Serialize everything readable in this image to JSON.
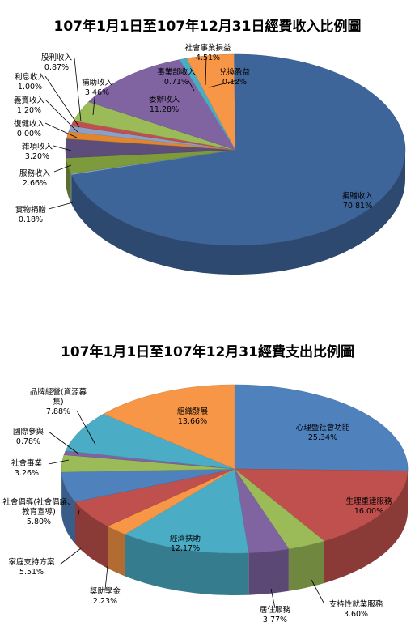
{
  "chart_data": [
    {
      "type": "pie",
      "title": "107年1月1日至107年12月31日經費收入比例圖",
      "style": "3d",
      "slices": [
        {
          "label": "捐贈收入",
          "value": 70.81,
          "display": "70.81%",
          "color": "#3e659a"
        },
        {
          "label": "實物捐贈",
          "value": 0.18,
          "display": "0.18%",
          "color": "#8aa8cf"
        },
        {
          "label": "服務收入",
          "value": 2.66,
          "display": "2.66%",
          "color": "#7d9a3c"
        },
        {
          "label": "雜項收入",
          "value": 3.2,
          "display": "3.20%",
          "color": "#5d4d7a"
        },
        {
          "label": "復健收入",
          "value": 0.0,
          "display": "0.00%",
          "color": "#3c8fa8"
        },
        {
          "label": "義賣收入",
          "value": 1.2,
          "display": "1.20%",
          "color": "#e0862d"
        },
        {
          "label": "利息收入",
          "value": 1.0,
          "display": "1.00%",
          "color": "#8d9fc6"
        },
        {
          "label": "股利收入",
          "value": 0.87,
          "display": "0.87%",
          "color": "#c0504d"
        },
        {
          "label": "補助收入",
          "value": 3.46,
          "display": "3.46%",
          "color": "#9bbb59"
        },
        {
          "label": "委辦收入",
          "value": 11.28,
          "display": "11.28%",
          "color": "#8064a2"
        },
        {
          "label": "事業部收入",
          "value": 0.71,
          "display": "0.71%",
          "color": "#4bacc6"
        },
        {
          "label": "社會事業損益",
          "value": 4.51,
          "display": "4.51%",
          "color": "#f79646"
        },
        {
          "label": "兌換盈益",
          "value": 0.12,
          "display": "0.12%",
          "color": "#4f81bd"
        }
      ]
    },
    {
      "type": "pie",
      "title": "107年1月1日至107年12月31經費支出比例圖",
      "style": "3d",
      "slices": [
        {
          "label": "心理暨社會功能",
          "value": 25.34,
          "display": "25.34%",
          "color": "#4f81bd"
        },
        {
          "label": "生理重建服務",
          "value": 16.0,
          "display": "16.00%",
          "color": "#c0504d"
        },
        {
          "label": "支持性就業服務",
          "value": 3.6,
          "display": "3.60%",
          "color": "#9bbb59"
        },
        {
          "label": "居住服務",
          "value": 3.77,
          "display": "3.77%",
          "color": "#8064a2"
        },
        {
          "label": "經濟扶助",
          "value": 12.17,
          "display": "12.17%",
          "color": "#4bacc6"
        },
        {
          "label": "獎助學金",
          "value": 2.23,
          "display": "2.23%",
          "color": "#f79646"
        },
        {
          "label": "家庭支持方案",
          "value": 5.51,
          "display": "5.51%",
          "color": "#c0504d"
        },
        {
          "label": "社會倡導(社會倡議、教育宣導)",
          "value": 5.8,
          "display": "5.80%",
          "color": "#4f81bd"
        },
        {
          "label": "社會事業",
          "value": 3.26,
          "display": "3.26%",
          "color": "#9bbb59"
        },
        {
          "label": "國際參與",
          "value": 0.78,
          "display": "0.78%",
          "color": "#8064a2"
        },
        {
          "label": "品牌經營(資源募集)",
          "value": 7.88,
          "display": "7.88%",
          "color": "#4bacc6"
        },
        {
          "label": "組織發展",
          "value": 13.66,
          "display": "13.66%",
          "color": "#f79646"
        }
      ]
    }
  ]
}
